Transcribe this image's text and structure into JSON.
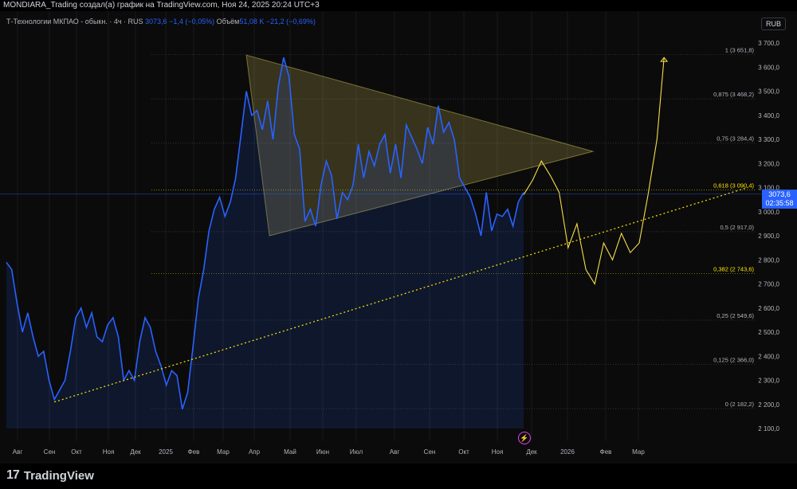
{
  "header": {
    "caption": "MONDIARA_Trading создал(а) график на TradingView.com, Ноя 24, 2025 20:24 UTC+3"
  },
  "legend": {
    "symbol": "Т-Технологии МКПАО - обыкн. · 4ч · RUS",
    "price": "3073,6",
    "change": "−1,4 (−0,05%)",
    "volume_label": "Объём",
    "volume_value": "51,08 K",
    "volume_change": "−21,2 (−0,69%)"
  },
  "currency_button": "RUB",
  "price_tag": {
    "price": "3073,6",
    "countdown": "02:35:58"
  },
  "branding": "TradingView",
  "colors": {
    "price_line": "#2962ff",
    "fib_levels": "#6e6e6e",
    "fib_highlight": "#ffe600",
    "triangle": "#d4c55a",
    "trendline": "#ffe600",
    "projection": "#f5dd4a",
    "background": "#0b0b0b"
  },
  "chart_data": {
    "type": "line",
    "ylim": [
      2100,
      3700
    ],
    "y_ticks": [
      "3 700,0",
      "3 600,0",
      "3 500,0",
      "3 400,0",
      "3 300,0",
      "3 200,0",
      "3 100,0",
      "3 000,0",
      "2 900,0",
      "2 800,0",
      "2 700,0",
      "2 600,0",
      "2 500,0",
      "2 400,0",
      "2 300,0",
      "2 200,0",
      "2 100,0"
    ],
    "x_ticks": [
      "Авг",
      "Сен",
      "Окт",
      "Ноя",
      "Дек",
      "2025",
      "Фев",
      "Мар",
      "Апр",
      "Май",
      "Июн",
      "Июл",
      "Авг",
      "Сен",
      "Окт",
      "Ноя",
      "Дек",
      "2026",
      "Фев",
      "Мар"
    ],
    "fib_levels": [
      {
        "label": "1 (3 651,8)",
        "value": 3651.8,
        "highlight": false
      },
      {
        "label": "0,875 (3 468,2)",
        "value": 3468.2,
        "highlight": false
      },
      {
        "label": "0,75 (3 284,4)",
        "value": 3284.4,
        "highlight": false
      },
      {
        "label": "0,618 (3 090,4)",
        "value": 3090.4,
        "highlight": true
      },
      {
        "label": "0,5 (2 917,0)",
        "value": 2917.0,
        "highlight": false
      },
      {
        "label": "0,382 (2 743,6)",
        "value": 2743.6,
        "highlight": true
      },
      {
        "label": "0,25 (2 549,6)",
        "value": 2549.6,
        "highlight": false
      },
      {
        "label": "0,125 (2 366,0)",
        "value": 2366.0,
        "highlight": false
      },
      {
        "label": "0 (2 182,2)",
        "value": 2182.2,
        "highlight": false
      }
    ],
    "series": [
      {
        "kind": "price",
        "points": [
          [
            0,
            2790
          ],
          [
            3,
            2760
          ],
          [
            6,
            2620
          ],
          [
            9,
            2500
          ],
          [
            12,
            2580
          ],
          [
            15,
            2480
          ],
          [
            18,
            2400
          ],
          [
            21,
            2420
          ],
          [
            24,
            2300
          ],
          [
            27,
            2220
          ],
          [
            30,
            2260
          ],
          [
            33,
            2300
          ],
          [
            36,
            2420
          ],
          [
            39,
            2560
          ],
          [
            42,
            2600
          ],
          [
            45,
            2520
          ],
          [
            48,
            2580
          ],
          [
            51,
            2480
          ],
          [
            54,
            2460
          ],
          [
            57,
            2530
          ],
          [
            60,
            2560
          ],
          [
            63,
            2480
          ],
          [
            66,
            2300
          ],
          [
            69,
            2340
          ],
          [
            72,
            2300
          ],
          [
            75,
            2460
          ],
          [
            78,
            2560
          ],
          [
            81,
            2520
          ],
          [
            84,
            2420
          ],
          [
            87,
            2360
          ],
          [
            90,
            2280
          ],
          [
            93,
            2340
          ],
          [
            96,
            2320
          ],
          [
            99,
            2180
          ],
          [
            102,
            2250
          ],
          [
            105,
            2440
          ],
          [
            108,
            2640
          ],
          [
            111,
            2760
          ],
          [
            114,
            2920
          ],
          [
            117,
            3010
          ],
          [
            120,
            3060
          ],
          [
            123,
            2980
          ],
          [
            126,
            3040
          ],
          [
            129,
            3140
          ],
          [
            132,
            3320
          ],
          [
            135,
            3500
          ],
          [
            138,
            3400
          ],
          [
            141,
            3420
          ],
          [
            144,
            3340
          ],
          [
            147,
            3460
          ],
          [
            150,
            3300
          ],
          [
            153,
            3520
          ],
          [
            156,
            3640
          ],
          [
            159,
            3560
          ],
          [
            162,
            3320
          ],
          [
            165,
            3260
          ],
          [
            168,
            2960
          ],
          [
            171,
            3010
          ],
          [
            174,
            2940
          ],
          [
            177,
            3110
          ],
          [
            180,
            3210
          ],
          [
            183,
            3150
          ],
          [
            186,
            2970
          ],
          [
            189,
            3080
          ],
          [
            192,
            3050
          ],
          [
            195,
            3110
          ],
          [
            198,
            3280
          ],
          [
            201,
            3140
          ],
          [
            204,
            3250
          ],
          [
            207,
            3190
          ],
          [
            210,
            3280
          ],
          [
            213,
            3320
          ],
          [
            216,
            3160
          ],
          [
            219,
            3280
          ],
          [
            222,
            3140
          ],
          [
            225,
            3360
          ],
          [
            228,
            3310
          ],
          [
            231,
            3260
          ],
          [
            234,
            3200
          ],
          [
            237,
            3350
          ],
          [
            240,
            3280
          ],
          [
            243,
            3440
          ],
          [
            246,
            3330
          ],
          [
            249,
            3370
          ],
          [
            252,
            3300
          ],
          [
            255,
            3140
          ],
          [
            258,
            3100
          ],
          [
            261,
            3060
          ],
          [
            264,
            2990
          ],
          [
            267,
            2900
          ],
          [
            270,
            3080
          ],
          [
            273,
            2920
          ],
          [
            276,
            2990
          ],
          [
            279,
            2980
          ],
          [
            282,
            3010
          ],
          [
            285,
            2940
          ],
          [
            288,
            3040
          ],
          [
            291,
            3080
          ]
        ]
      },
      {
        "kind": "projection",
        "points": [
          [
            291,
            3070
          ],
          [
            296,
            3130
          ],
          [
            301,
            3210
          ],
          [
            306,
            3150
          ],
          [
            311,
            3080
          ],
          [
            316,
            2850
          ],
          [
            321,
            2950
          ],
          [
            326,
            2760
          ],
          [
            331,
            2700
          ],
          [
            336,
            2870
          ],
          [
            341,
            2800
          ],
          [
            346,
            2910
          ],
          [
            351,
            2830
          ],
          [
            356,
            2870
          ],
          [
            361,
            3070
          ],
          [
            366,
            3300
          ],
          [
            370,
            3640
          ]
        ]
      }
    ],
    "trendline": {
      "from": [
        27,
        2210
      ],
      "to": [
        417,
        3100
      ]
    },
    "triangle": [
      [
        135,
        3650
      ],
      [
        148,
        2900
      ],
      [
        330,
        3250
      ]
    ]
  }
}
